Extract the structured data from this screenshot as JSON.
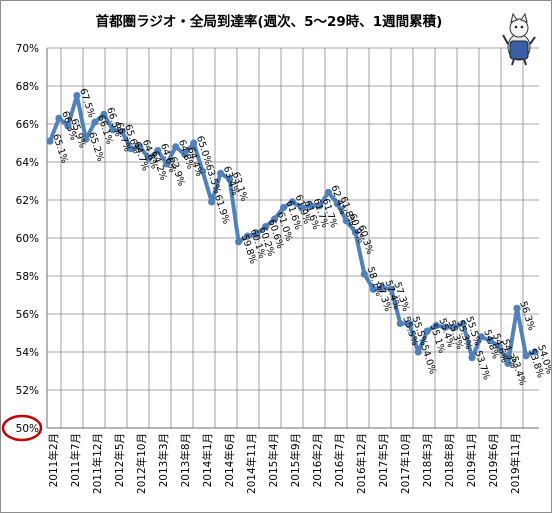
{
  "chart_data": {
    "type": "line",
    "title": "首都圏ラジオ・全局到達率(週次、5～29時、1週間累積)",
    "xlabel": "",
    "ylabel": "",
    "ylim": [
      50,
      70
    ],
    "yticks": [
      50,
      52,
      54,
      56,
      58,
      60,
      62,
      64,
      66,
      68,
      70
    ],
    "ytick_labels": [
      "50%",
      "52%",
      "54%",
      "56%",
      "58%",
      "60%",
      "62%",
      "64%",
      "66%",
      "68%",
      "70%"
    ],
    "highlighted_tick": "50%",
    "x_tick_labels": [
      "2011年2月",
      "2011年7月",
      "2011年12月",
      "2012年5月",
      "2012年10月",
      "2013年3月",
      "2013年8月",
      "2014年1月",
      "2014年6月",
      "2014年11月",
      "2015年4月",
      "2015年9月",
      "2016年2月",
      "2016年7月",
      "2016年12月",
      "2017年5月",
      "2017年10月",
      "2018年3月",
      "2018年8月",
      "2019年1月",
      "2019年6月",
      "2019年11月"
    ],
    "grid": true,
    "legend": "none",
    "series": [
      {
        "color": "#4f81bd",
        "values": [
          65.1,
          66.3,
          65.9,
          67.5,
          65.2,
          66.1,
          66.5,
          65.7,
          65.6,
          64.7,
          64.8,
          64.2,
          64.6,
          63.9,
          64.8,
          64.4,
          65.0,
          63.5,
          61.9,
          63.4,
          63.1,
          59.8,
          60.1,
          60.2,
          60.6,
          61.0,
          61.6,
          61.9,
          61.6,
          61.7,
          61.7,
          62.4,
          61.8,
          60.9,
          60.3,
          58.1,
          57.3,
          57.4,
          57.3,
          55.5,
          55.5,
          54.0,
          55.1,
          55.4,
          55.3,
          55.3,
          55.5,
          53.7,
          54.8,
          54.6,
          54.3,
          53.4,
          56.3,
          53.8,
          54.0
        ],
        "labels": [
          "65.1%",
          "66.3%",
          "65.9%",
          "67.5%",
          "65.2%",
          "66.1%",
          "66.5%",
          "65.7%",
          "65.6%",
          "64.7%",
          "64.8%",
          "64.2%",
          "64.6%",
          "63.9%",
          "64.8%",
          "64.4%",
          "65.0%",
          "63.5%",
          "61.9%",
          "63.4%",
          "63.1%",
          "59.8%",
          "60.1%",
          "60.2%",
          "60.6%",
          "61.0%",
          "61.6%",
          "61.9%",
          "61.6%",
          "61.7%",
          "61.7%",
          "62.4%",
          "61.8%",
          "60.9%",
          "60.3%",
          "58.1%",
          "57.3%",
          "57.4%",
          "57.3%",
          "55.5%",
          "55.5%",
          "54.0%",
          "55.1%",
          "55.4%",
          "55.3%",
          "55.3%",
          "55.5%",
          "53.7%",
          "54.8%",
          "54.6%",
          "54.3%",
          "53.4%",
          "56.3%",
          "53.8%",
          "54.0%"
        ]
      }
    ]
  },
  "mascot": {
    "icon": "cat-mascot-icon"
  }
}
